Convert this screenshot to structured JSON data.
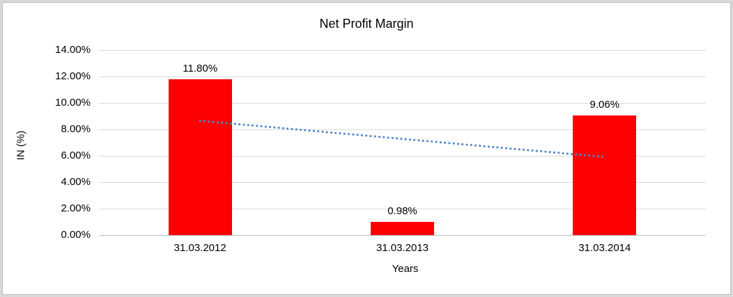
{
  "chart_data": {
    "type": "bar",
    "title": "Net Profit Margin",
    "xlabel": "Years",
    "ylabel": "IN (%)",
    "categories": [
      "31.03.2012",
      "31.03.2013",
      "31.03.2014"
    ],
    "values": [
      11.8,
      0.98,
      9.06
    ],
    "data_labels": [
      "11.80%",
      "0.98%",
      "9.06%"
    ],
    "ylim": [
      0,
      14
    ],
    "ytick_step": 2,
    "ytick_labels": [
      "0.00%",
      "2.00%",
      "4.00%",
      "6.00%",
      "8.00%",
      "10.00%",
      "12.00%",
      "14.00%"
    ],
    "grid": true,
    "legend": "none",
    "bar_color": "#ff0000",
    "gridline_color": "#d9d9d9",
    "axis_line_color": "#bfbfbf",
    "trendline": {
      "type": "linear",
      "style": "dotted",
      "color": "#4f86c6",
      "start_value": 8.65,
      "end_value": 5.91
    }
  }
}
